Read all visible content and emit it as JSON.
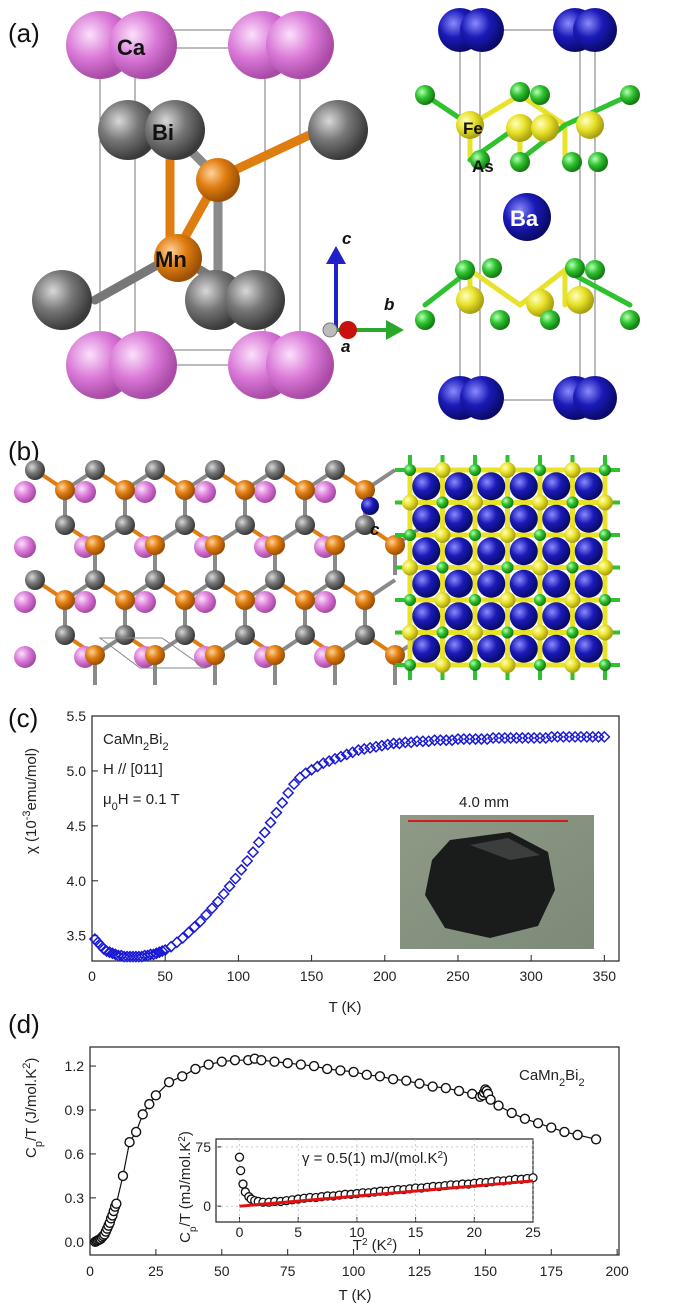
{
  "figure": {
    "panel_labels": [
      "(a)",
      "(b)",
      "(c)",
      "(d)"
    ],
    "panel_a": {
      "atoms_left": [
        "Ca",
        "Bi",
        "Mn"
      ],
      "atoms_right": [
        "Fe",
        "As",
        "Ba"
      ],
      "axes": [
        "c",
        "b",
        "a"
      ],
      "colors": {
        "Ca": "#d66fd3",
        "Bi": "#6b6b6b",
        "Mn": "#e07d10",
        "Ba": "#1a1ab8",
        "Fe": "#e8e22a",
        "As": "#2fc22f"
      }
    },
    "panel_b": {
      "axis_label": "c"
    },
    "panel_c": {
      "annotations": {
        "compound": "CaMn",
        "compound_sub": "2",
        "compound_tail": "Bi",
        "compound_sub2": "2",
        "field_dir": "H // [011]",
        "field_prefix": "μ",
        "field_sub": "0",
        "field_value": "H = 0.1 T",
        "scale_bar": "4.0 mm"
      },
      "ylabel_parts": [
        "χ (10",
        "-3",
        "emu/mol)"
      ],
      "xlabel": "T (K)",
      "xticks": [
        "0",
        "50",
        "100",
        "150",
        "200",
        "250",
        "300",
        "350"
      ],
      "yticks": [
        "3.5",
        "4.0",
        "4.5",
        "5.0",
        "5.5"
      ]
    },
    "panel_d": {
      "annotations": {
        "compound": "CaMn",
        "compound_sub": "2",
        "compound_tail": "Bi",
        "compound_sub2": "2",
        "gamma": "γ = 0.5(1) mJ/(mol.K",
        "gamma_sup": "2",
        "gamma_tail": ")"
      },
      "ylabel_parts": [
        "C",
        "p",
        "/T (J/mol.K",
        "2",
        ")"
      ],
      "xlabel": "T (K)",
      "xticks": [
        "0",
        "25",
        "50",
        "75",
        "100",
        "125",
        "150",
        "175",
        "200"
      ],
      "yticks": [
        "0.0",
        "0.3",
        "0.6",
        "0.9",
        "1.2"
      ],
      "inset": {
        "ylabel_parts": [
          "C",
          "p",
          "/T (mJ/mol.K",
          "2",
          ")"
        ],
        "xlabel_parts": [
          "T",
          "2",
          " (K",
          "2",
          ")"
        ],
        "xticks": [
          "0",
          "5",
          "10",
          "15",
          "20",
          "25"
        ],
        "yticks": [
          "0",
          "75"
        ]
      }
    }
  },
  "chart_data": [
    {
      "type": "scatter",
      "marker": "diamond",
      "color": "#1a1ad6",
      "xlabel": "T (K)",
      "ylabel": "χ (10-3emu/mol)",
      "xlim": [
        0,
        360
      ],
      "ylim": [
        3.27,
        5.5
      ],
      "series": [
        {
          "x": [
            2,
            4,
            6,
            8,
            10,
            12,
            14,
            16,
            18,
            20,
            22,
            24,
            26,
            28,
            30,
            32,
            34,
            36,
            38,
            40,
            42,
            44,
            46,
            48,
            50,
            54,
            58,
            62,
            66,
            70,
            74,
            78,
            82,
            86,
            90,
            94,
            98,
            102,
            106,
            110,
            114,
            118,
            122,
            126,
            130,
            134,
            138,
            142,
            146,
            150,
            154,
            158,
            162,
            166,
            170,
            174,
            178,
            182,
            186,
            190,
            194,
            198,
            202,
            206,
            210,
            214,
            218,
            222,
            226,
            230,
            234,
            238,
            242,
            246,
            250,
            254,
            258,
            262,
            266,
            270,
            274,
            278,
            282,
            286,
            290,
            294,
            298,
            302,
            306,
            310,
            314,
            318,
            322,
            326,
            330,
            334,
            338,
            342,
            346,
            350
          ],
          "y": [
            3.47,
            3.44,
            3.41,
            3.38,
            3.36,
            3.35,
            3.34,
            3.33,
            3.32,
            3.32,
            3.31,
            3.31,
            3.31,
            3.31,
            3.31,
            3.31,
            3.31,
            3.32,
            3.32,
            3.33,
            3.33,
            3.34,
            3.35,
            3.36,
            3.37,
            3.4,
            3.44,
            3.48,
            3.53,
            3.58,
            3.63,
            3.69,
            3.75,
            3.81,
            3.88,
            3.95,
            4.02,
            4.1,
            4.18,
            4.26,
            4.35,
            4.44,
            4.53,
            4.62,
            4.71,
            4.8,
            4.88,
            4.94,
            4.98,
            5.01,
            5.04,
            5.07,
            5.09,
            5.11,
            5.13,
            5.15,
            5.17,
            5.19,
            5.2,
            5.21,
            5.22,
            5.23,
            5.24,
            5.25,
            5.25,
            5.26,
            5.26,
            5.27,
            5.27,
            5.27,
            5.28,
            5.28,
            5.28,
            5.28,
            5.29,
            5.29,
            5.29,
            5.29,
            5.29,
            5.29,
            5.3,
            5.3,
            5.3,
            5.3,
            5.3,
            5.3,
            5.3,
            5.3,
            5.3,
            5.3,
            5.31,
            5.31,
            5.31,
            5.31,
            5.31,
            5.31,
            5.31,
            5.31,
            5.31,
            5.31
          ]
        }
      ]
    },
    {
      "type": "line",
      "marker": "open-circle",
      "color": "#111111",
      "xlabel": "T (K)",
      "ylabel": "Cp/T (J/mol.K2)",
      "xlim": [
        0,
        200
      ],
      "ylim": [
        -0.09,
        1.33
      ],
      "series": [
        {
          "x": [
            2,
            2.5,
            3,
            3.5,
            4,
            4.5,
            5,
            5.5,
            6,
            6.5,
            7,
            7.5,
            8,
            8.5,
            9,
            9.5,
            10,
            12.5,
            15,
            17.5,
            20,
            22.5,
            25,
            30,
            35,
            40,
            45,
            50,
            55,
            60,
            62.5,
            65,
            70,
            75,
            80,
            85,
            90,
            95,
            100,
            105,
            110,
            115,
            120,
            125,
            130,
            135,
            140,
            145,
            148,
            149,
            149.5,
            150,
            150.5,
            151,
            152,
            155,
            160,
            165,
            170,
            175,
            180,
            185,
            192
          ],
          "y": [
            0.0,
            0.005,
            0.01,
            0.015,
            0.02,
            0.03,
            0.04,
            0.05,
            0.07,
            0.09,
            0.11,
            0.13,
            0.16,
            0.18,
            0.21,
            0.24,
            0.26,
            0.45,
            0.68,
            0.75,
            0.87,
            0.94,
            1.0,
            1.09,
            1.13,
            1.18,
            1.21,
            1.23,
            1.24,
            1.24,
            1.25,
            1.24,
            1.23,
            1.22,
            1.21,
            1.2,
            1.18,
            1.17,
            1.16,
            1.14,
            1.13,
            1.11,
            1.1,
            1.08,
            1.06,
            1.05,
            1.03,
            1.01,
            0.99,
            1.0,
            1.02,
            1.04,
            1.03,
            1.01,
            0.97,
            0.93,
            0.88,
            0.84,
            0.81,
            0.78,
            0.75,
            0.73,
            0.7
          ]
        }
      ]
    },
    {
      "type": "scatter",
      "marker": "open-circle",
      "color": "#111111",
      "xlabel": "T2 (K2)",
      "ylabel": "Cp/T (mJ/mol.K2)",
      "xlim": [
        -2,
        25
      ],
      "ylim": [
        -20,
        85
      ],
      "series": [
        {
          "x": [
            0.0,
            0.1,
            0.3,
            0.5,
            0.8,
            1.0,
            1.3,
            1.6,
            2,
            2.5,
            3,
            3.5,
            4,
            4.5,
            5,
            5.5,
            6,
            6.5,
            7,
            7.5,
            8,
            8.5,
            9,
            9.5,
            10,
            10.5,
            11,
            11.5,
            12,
            12.5,
            13,
            13.5,
            14,
            14.5,
            15,
            15.5,
            16,
            16.5,
            17,
            17.5,
            18,
            18.5,
            19,
            19.5,
            20,
            20.5,
            21,
            21.5,
            22,
            22.5,
            23,
            23.5,
            24,
            24.5,
            25
          ],
          "y": [
            62,
            45,
            28,
            18,
            12,
            9,
            7,
            6,
            5,
            5,
            6,
            6,
            7,
            8,
            9,
            10,
            11,
            11,
            12,
            13,
            13,
            14,
            15,
            15,
            16,
            17,
            17,
            18,
            19,
            19,
            20,
            21,
            21,
            22,
            23,
            23,
            24,
            25,
            25,
            26,
            27,
            27,
            28,
            28,
            29,
            30,
            30,
            31,
            32,
            32,
            33,
            34,
            34,
            35,
            36
          ]
        }
      ],
      "fit_line": {
        "x": [
          0,
          25
        ],
        "y": [
          0,
          32
        ],
        "color": "#e01010"
      }
    }
  ]
}
